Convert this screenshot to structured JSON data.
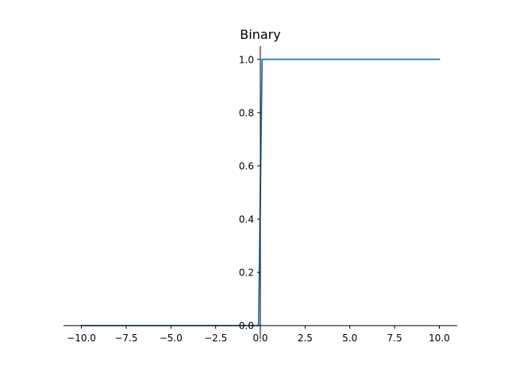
{
  "chart_data": {
    "type": "line",
    "title": "Binary",
    "xlabel": "",
    "ylabel": "",
    "xlim": [
      -11.0,
      11.0
    ],
    "ylim": [
      -0.05,
      1.05
    ],
    "x_ticks": [
      -10.0,
      -7.5,
      -5.0,
      -2.5,
      0.0,
      2.5,
      5.0,
      7.5,
      10.0
    ],
    "x_tick_labels": [
      "−10.0",
      "−7.5",
      "−5.0",
      "−2.5",
      "0.0",
      "2.5",
      "5.0",
      "7.5",
      "10.0"
    ],
    "y_ticks": [
      0.0,
      0.2,
      0.4,
      0.6,
      0.8,
      1.0
    ],
    "y_tick_labels": [
      "0.0",
      "0.2",
      "0.4",
      "0.6",
      "0.8",
      "1.0"
    ],
    "spines": "centered",
    "grid": false,
    "series": [
      {
        "color": "#1f77b4",
        "x": [
          -10.0,
          -0.1,
          0.1,
          10.0
        ],
        "y": [
          0.0,
          0.0,
          1.0,
          1.0
        ]
      }
    ]
  }
}
